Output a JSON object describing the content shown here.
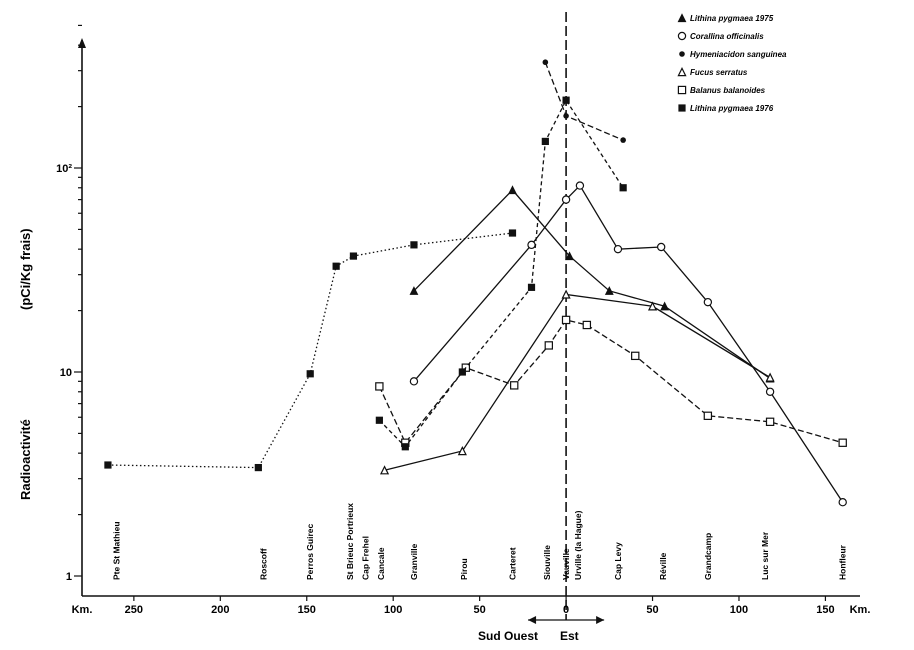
{
  "chart_data": {
    "type": "line",
    "ylabel": "Radioactivité (pCi/Kg frais)",
    "ylabel_parts": [
      "Radioactivité",
      "(pCi/Kg frais)"
    ],
    "yscale": "log",
    "ylim": [
      1,
      500
    ],
    "y_ticks": [
      {
        "value": 1,
        "label": "1"
      },
      {
        "value": 10,
        "label": "10"
      },
      {
        "value": 100,
        "label": "10²"
      }
    ],
    "xlim": [
      -280,
      170
    ],
    "x_ticks": [
      {
        "value": -280,
        "label": "Km."
      },
      {
        "value": -250,
        "label": "250"
      },
      {
        "value": -200,
        "label": "200"
      },
      {
        "value": -150,
        "label": "150"
      },
      {
        "value": -100,
        "label": "100"
      },
      {
        "value": -50,
        "label": "50"
      },
      {
        "value": 0,
        "label": "0"
      },
      {
        "value": 50,
        "label": "50"
      },
      {
        "value": 100,
        "label": "100"
      },
      {
        "value": 150,
        "label": "150"
      },
      {
        "value": 170,
        "label": "Km."
      }
    ],
    "direction": {
      "west": "Sud Ouest",
      "east": "Est"
    },
    "sites": [
      {
        "name": "Pte St Mathieu",
        "x": -260
      },
      {
        "name": "Roscoff",
        "x": -175
      },
      {
        "name": "Perros Guirec",
        "x": -148
      },
      {
        "name": "St Brieuc Portrieux",
        "x": -125
      },
      {
        "name": "Cap Frehel",
        "x": -116
      },
      {
        "name": "Cancale",
        "x": -107
      },
      {
        "name": "Granville",
        "x": -88
      },
      {
        "name": "Pirou",
        "x": -59
      },
      {
        "name": "Carteret",
        "x": -31
      },
      {
        "name": "Siouville",
        "x": -11
      },
      {
        "name": "Vauville",
        "x": 0
      },
      {
        "name": "Urville (la Hague)",
        "x": 7
      },
      {
        "name": "Cap Levy",
        "x": 30
      },
      {
        "name": "Réville",
        "x": 56
      },
      {
        "name": "Grandcamp",
        "x": 82
      },
      {
        "name": "Luc sur Mer",
        "x": 115
      },
      {
        "name": "Honfleur",
        "x": 160
      }
    ],
    "series": [
      {
        "name": "Lithina pygmaea 1975",
        "marker": "triangle-filled",
        "x": [
          -88,
          -31,
          2,
          25,
          57,
          118
        ],
        "y": [
          25,
          78,
          37,
          25,
          21,
          9.3
        ]
      },
      {
        "name": "Corallina officinalis",
        "marker": "circle-open",
        "x": [
          -88,
          -20,
          0,
          8,
          30,
          55,
          82,
          118,
          160
        ],
        "y": [
          9,
          42,
          70,
          82,
          40,
          41,
          22,
          8,
          2.3
        ]
      },
      {
        "name": "Hymeniacidon sanguinea",
        "marker": "dot",
        "x": [
          -12,
          0,
          33
        ],
        "y": [
          330,
          180,
          137
        ]
      },
      {
        "name": "Fucus serratus",
        "marker": "triangle-open",
        "x": [
          -105,
          -60,
          0,
          50,
          118
        ],
        "y": [
          3.3,
          4.1,
          24,
          21,
          9.4
        ]
      },
      {
        "name": "Balanus balanoides",
        "marker": "square-open",
        "x": [
          -108,
          -93,
          -58,
          -30,
          -10,
          0,
          12,
          40,
          82,
          118,
          160
        ],
        "y": [
          8.5,
          4.5,
          10.5,
          8.6,
          13.5,
          18,
          17,
          12,
          6.1,
          5.7,
          4.5
        ]
      },
      {
        "name": "Lithina pygmaea 1976",
        "marker": "square-filled",
        "x": [
          -265,
          -178,
          -148,
          -133,
          -123,
          -88,
          -31
        ],
        "y": [
          3.5,
          3.4,
          9.8,
          33,
          37,
          42,
          48
        ]
      },
      {
        "name": "",
        "marker": "square-filled",
        "x": [
          -108,
          -93,
          -60,
          -20,
          -12,
          0,
          33
        ],
        "y": [
          5.8,
          4.3,
          10,
          26,
          135,
          215,
          80
        ]
      }
    ]
  },
  "legend": [
    {
      "label": "Lithina pygmaea   1975",
      "marker": "triangle-filled"
    },
    {
      "label": "Corallina officinalis",
      "marker": "circle-open"
    },
    {
      "label": "Hymeniacidon sanguinea",
      "marker": "dot"
    },
    {
      "label": "Fucus serratus",
      "marker": "triangle-open"
    },
    {
      "label": "Balanus balanoides",
      "marker": "square-open"
    },
    {
      "label": "Lithina pygmaea 1976",
      "marker": "square-filled"
    }
  ]
}
